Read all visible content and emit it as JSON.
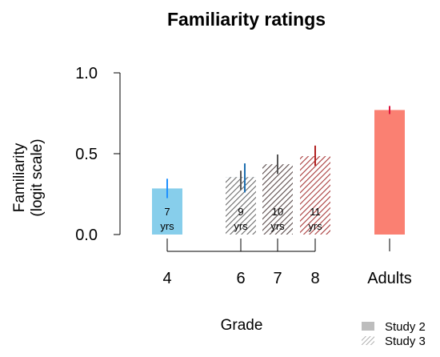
{
  "chart_data": {
    "type": "bar",
    "title": "Familiarity ratings",
    "ylabel": [
      "Familiarity",
      "(logit scale)"
    ],
    "xlabel": "Grade",
    "ylim": [
      0,
      1
    ],
    "yticks": [
      0.0,
      0.5,
      1.0
    ],
    "ytick_labels": [
      "0.0",
      "0.5",
      "1.0"
    ],
    "categories": [
      "4",
      "6",
      "7",
      "8",
      "Adults"
    ],
    "bars": [
      {
        "category": "4",
        "study": "Study 2",
        "age_label": [
          "7",
          "yrs"
        ],
        "value": 0.285,
        "ci": [
          0.225,
          0.345
        ],
        "color": "#87CEEB",
        "error_color": "#1E90FF"
      },
      {
        "category": "6",
        "study": "Study 2",
        "age_label": [
          "9",
          "yrs"
        ],
        "value": 0.355,
        "ci": [
          0.26,
          0.44
        ],
        "color": "#9BB8CB",
        "error_color": "#1E6FB0",
        "overlay": true
      },
      {
        "category": "6",
        "study": "Study 3",
        "age_label": [
          "9",
          "yrs"
        ],
        "value": 0.355,
        "ci": [
          0.275,
          0.395
        ],
        "color": "#7A7A7A",
        "error_color": "#555555"
      },
      {
        "category": "7",
        "study": "Study 3",
        "age_label": [
          "10",
          "yrs"
        ],
        "value": 0.435,
        "ci": [
          0.375,
          0.495
        ],
        "color": "#6A5A5A",
        "error_color": "#555555"
      },
      {
        "category": "8",
        "study": "Study 3",
        "age_label": [
          "11",
          "yrs"
        ],
        "value": 0.485,
        "ci": [
          0.425,
          0.55
        ],
        "color": "#B04848",
        "error_color": "#B22222"
      },
      {
        "category": "Adults",
        "study": "Study 2",
        "age_label": [
          "",
          ""
        ],
        "value": 0.77,
        "ci": [
          0.745,
          0.795
        ],
        "color": "#FA8072",
        "error_color": "#DC143C"
      }
    ],
    "legend": {
      "position": "bottom-right",
      "entries": [
        {
          "label": "Study 2",
          "pattern": "solid",
          "color": "#bdbdbd"
        },
        {
          "label": "Study 3",
          "pattern": "hatched",
          "color": "#9a9a9a"
        }
      ]
    },
    "grid": false
  }
}
